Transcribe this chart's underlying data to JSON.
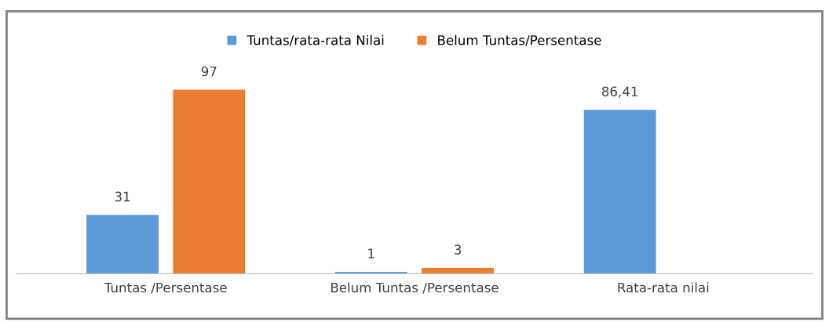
{
  "chart_data": {
    "type": "bar",
    "categories": [
      "Tuntas /Persentase",
      "Belum Tuntas /Persentase",
      "Rata-rata nilai"
    ],
    "series": [
      {
        "name": "Tuntas/rata-rata Nilai",
        "color": "#5b9bd5",
        "values": [
          31,
          1,
          86.41
        ],
        "value_labels": [
          "31",
          "1",
          "86,41"
        ]
      },
      {
        "name": "Belum Tuntas/Persentase",
        "color": "#ed7d31",
        "values": [
          97,
          3,
          null
        ],
        "value_labels": [
          "97",
          "3",
          null
        ]
      }
    ],
    "legend": "top",
    "grid": false
  }
}
